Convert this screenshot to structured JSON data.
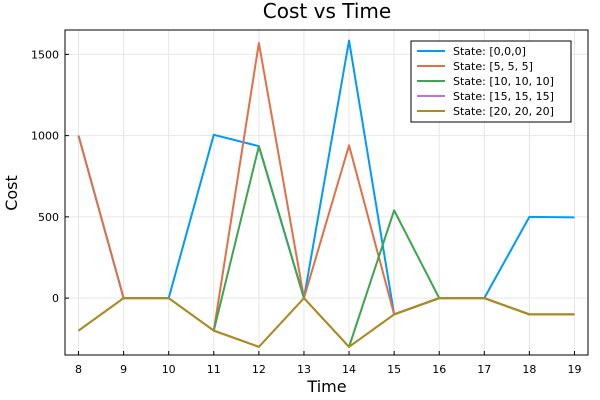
{
  "chart_data": {
    "type": "line",
    "title": "Cost vs Time",
    "xlabel": "Time",
    "ylabel": "Cost",
    "x": [
      8,
      9,
      10,
      11,
      12,
      13,
      14,
      15,
      16,
      17,
      18,
      19
    ],
    "xlim": [
      7.7,
      19.3
    ],
    "ylim": [
      -350,
      1650
    ],
    "xticks": [
      8,
      9,
      10,
      11,
      12,
      13,
      14,
      15,
      16,
      17,
      18,
      19
    ],
    "yticks": [
      0,
      500,
      1000,
      1500
    ],
    "grid": true,
    "legend_position": "top-right",
    "series": [
      {
        "name": "State: [0,0,0]",
        "color": "#009AFA",
        "values": [
          1000,
          0,
          0,
          1005,
          935,
          0,
          1585,
          -100,
          0,
          0,
          500,
          497
        ]
      },
      {
        "name": "State: [5, 5, 5]",
        "color": "#E26F46",
        "values": [
          1000,
          0,
          0,
          -200,
          1570,
          0,
          940,
          -100,
          0,
          0,
          -100,
          -100
        ]
      },
      {
        "name": "State: [10, 10, 10]",
        "color": "#3EA44E",
        "values": [
          -200,
          0,
          0,
          -200,
          935,
          0,
          -300,
          540,
          0,
          0,
          -100,
          -100
        ]
      },
      {
        "name": "State: [15, 15, 15]",
        "color": "#C271D2",
        "values": [
          -200,
          0,
          0,
          -200,
          -300,
          0,
          -300,
          -100,
          0,
          0,
          -100,
          -100
        ]
      },
      {
        "name": "State: [20, 20, 20]",
        "color": "#AC8D18",
        "values": [
          -200,
          0,
          0,
          -200,
          -300,
          0,
          -300,
          -100,
          0,
          0,
          -100,
          -100
        ]
      }
    ]
  }
}
